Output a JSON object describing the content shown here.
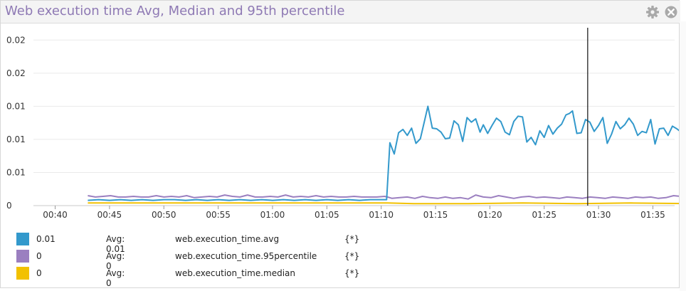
{
  "title": "Web execution time Avg, Median and 95th percentile",
  "icons": {
    "settings": "gear-icon",
    "close": "close-icon"
  },
  "colors": {
    "avg": "#3399cc",
    "p95": "#9b7fc0",
    "median": "#f2c100",
    "title": "#8e79b4"
  },
  "chart_data": {
    "type": "line",
    "x_ticks": [
      "00:40",
      "00:45",
      "00:50",
      "00:55",
      "01:00",
      "01:05",
      "01:10",
      "01:15",
      "01:20",
      "01:25",
      "01:30",
      "01:35"
    ],
    "x_range_min": [
      38,
      97
    ],
    "y_tick_labels": [
      "0",
      "0.01",
      "0.01",
      "0.01",
      "0.02",
      "0.02"
    ],
    "y_ticks_value": [
      0,
      0.005,
      0.01,
      0.015,
      0.02,
      0.025
    ],
    "ylim": [
      0,
      0.0275
    ],
    "grid": true,
    "cursor_x_min": 89,
    "series": [
      {
        "name": "web.execution_time.avg",
        "color": "#3399cc",
        "points": [
          [
            43,
            0.0008
          ],
          [
            44,
            0.0009
          ],
          [
            45,
            0.0008
          ],
          [
            46,
            0.0009
          ],
          [
            47,
            0.0008
          ],
          [
            48,
            0.0009
          ],
          [
            49,
            0.0008
          ],
          [
            50,
            0.0009
          ],
          [
            51,
            0.0009
          ],
          [
            52,
            0.0008
          ],
          [
            53,
            0.0009
          ],
          [
            54,
            0.0008
          ],
          [
            55,
            0.0009
          ],
          [
            56,
            0.0008
          ],
          [
            57,
            0.0009
          ],
          [
            58,
            0.0008
          ],
          [
            59,
            0.0009
          ],
          [
            60,
            0.0008
          ],
          [
            61,
            0.0009
          ],
          [
            62,
            0.0008
          ],
          [
            63,
            0.0009
          ],
          [
            64,
            0.0008
          ],
          [
            65,
            0.0009
          ],
          [
            66,
            0.0008
          ],
          [
            67,
            0.0009
          ],
          [
            68,
            0.0008
          ],
          [
            69,
            0.0009
          ],
          [
            70,
            0.0009
          ],
          [
            70.5,
            0.0009
          ],
          [
            70.8,
            0.0095
          ],
          [
            71.2,
            0.0078
          ],
          [
            71.6,
            0.011
          ],
          [
            72.0,
            0.0115
          ],
          [
            72.4,
            0.0106
          ],
          [
            72.8,
            0.0117
          ],
          [
            73.2,
            0.0094
          ],
          [
            73.6,
            0.0101
          ],
          [
            74.0,
            0.0129
          ],
          [
            74.3,
            0.015
          ],
          [
            74.7,
            0.0117
          ],
          [
            75.1,
            0.0116
          ],
          [
            75.5,
            0.0111
          ],
          [
            75.9,
            0.0101
          ],
          [
            76.3,
            0.0102
          ],
          [
            76.7,
            0.0128
          ],
          [
            77.1,
            0.0122
          ],
          [
            77.5,
            0.0097
          ],
          [
            77.9,
            0.0133
          ],
          [
            78.3,
            0.0126
          ],
          [
            78.7,
            0.0131
          ],
          [
            79.1,
            0.0111
          ],
          [
            79.4,
            0.0122
          ],
          [
            79.8,
            0.0109
          ],
          [
            80.2,
            0.0121
          ],
          [
            80.6,
            0.0132
          ],
          [
            81.0,
            0.0127
          ],
          [
            81.4,
            0.0111
          ],
          [
            81.8,
            0.0107
          ],
          [
            82.2,
            0.0127
          ],
          [
            82.6,
            0.0135
          ],
          [
            83.0,
            0.0134
          ],
          [
            83.4,
            0.0096
          ],
          [
            83.8,
            0.0103
          ],
          [
            84.2,
            0.0092
          ],
          [
            84.6,
            0.0113
          ],
          [
            85.0,
            0.0103
          ],
          [
            85.4,
            0.0121
          ],
          [
            85.8,
            0.0108
          ],
          [
            86.2,
            0.0117
          ],
          [
            86.6,
            0.0123
          ],
          [
            87.0,
            0.0137
          ],
          [
            87.3,
            0.0139
          ],
          [
            87.6,
            0.0143
          ],
          [
            88.0,
            0.0109
          ],
          [
            88.4,
            0.011
          ],
          [
            88.8,
            0.013
          ],
          [
            89.2,
            0.0126
          ],
          [
            89.6,
            0.0112
          ],
          [
            90.0,
            0.0121
          ],
          [
            90.4,
            0.0133
          ],
          [
            90.8,
            0.0094
          ],
          [
            91.2,
            0.0108
          ],
          [
            91.6,
            0.0127
          ],
          [
            92.0,
            0.0116
          ],
          [
            92.4,
            0.0122
          ],
          [
            92.8,
            0.0132
          ],
          [
            93.2,
            0.0123
          ],
          [
            93.6,
            0.0106
          ],
          [
            94.0,
            0.0112
          ],
          [
            94.4,
            0.011
          ],
          [
            94.8,
            0.013
          ],
          [
            95.2,
            0.0093
          ],
          [
            95.6,
            0.0116
          ],
          [
            96.0,
            0.0117
          ],
          [
            96.4,
            0.0106
          ],
          [
            96.8,
            0.012
          ],
          [
            97.2,
            0.0116
          ],
          [
            97.6,
            0.0111
          ],
          [
            98.0,
            0.0123
          ],
          [
            98.4,
            0.0115
          ]
        ]
      },
      {
        "name": "web.execution_time.95percentile",
        "color": "#9b7fc0",
        "points": [
          [
            43,
            0.0015
          ],
          [
            43.7,
            0.0013
          ],
          [
            44.4,
            0.0014
          ],
          [
            45.1,
            0.0015
          ],
          [
            45.8,
            0.0013
          ],
          [
            46.5,
            0.0013
          ],
          [
            47.2,
            0.0014
          ],
          [
            47.9,
            0.0013
          ],
          [
            48.6,
            0.0013
          ],
          [
            49.3,
            0.0015
          ],
          [
            50.0,
            0.0013
          ],
          [
            50.7,
            0.0014
          ],
          [
            51.4,
            0.0013
          ],
          [
            52.1,
            0.0015
          ],
          [
            52.8,
            0.0012
          ],
          [
            53.5,
            0.0013
          ],
          [
            54.2,
            0.0014
          ],
          [
            54.9,
            0.0013
          ],
          [
            55.6,
            0.0016
          ],
          [
            56.3,
            0.0014
          ],
          [
            57.0,
            0.0013
          ],
          [
            57.7,
            0.0016
          ],
          [
            58.4,
            0.0013
          ],
          [
            59.1,
            0.0013
          ],
          [
            59.8,
            0.0014
          ],
          [
            60.5,
            0.0013
          ],
          [
            61.2,
            0.0016
          ],
          [
            61.9,
            0.0013
          ],
          [
            62.6,
            0.0014
          ],
          [
            63.3,
            0.0013
          ],
          [
            64.0,
            0.0015
          ],
          [
            64.7,
            0.0013
          ],
          [
            65.4,
            0.0014
          ],
          [
            66.1,
            0.0013
          ],
          [
            66.8,
            0.0013
          ],
          [
            67.5,
            0.0014
          ],
          [
            68.2,
            0.0013
          ],
          [
            68.9,
            0.0013
          ],
          [
            69.6,
            0.0013
          ],
          [
            70.3,
            0.0014
          ],
          [
            70.6,
            0.0013
          ],
          [
            71.0,
            0.0011
          ],
          [
            71.7,
            0.0012
          ],
          [
            72.4,
            0.0013
          ],
          [
            73.1,
            0.0011
          ],
          [
            73.8,
            0.0014
          ],
          [
            74.5,
            0.0012
          ],
          [
            75.2,
            0.0011
          ],
          [
            75.9,
            0.0013
          ],
          [
            76.6,
            0.0011
          ],
          [
            77.3,
            0.0012
          ],
          [
            78.0,
            0.001
          ],
          [
            78.7,
            0.0016
          ],
          [
            79.4,
            0.0013
          ],
          [
            80.1,
            0.0012
          ],
          [
            80.8,
            0.0015
          ],
          [
            81.5,
            0.0013
          ],
          [
            82.2,
            0.0011
          ],
          [
            82.9,
            0.0013
          ],
          [
            83.6,
            0.0014
          ],
          [
            84.3,
            0.0012
          ],
          [
            85.0,
            0.0013
          ],
          [
            85.7,
            0.0012
          ],
          [
            86.4,
            0.0011
          ],
          [
            87.1,
            0.0013
          ],
          [
            87.8,
            0.0012
          ],
          [
            88.5,
            0.0011
          ],
          [
            89.2,
            0.0013
          ],
          [
            89.9,
            0.0012
          ],
          [
            90.6,
            0.0011
          ],
          [
            91.3,
            0.0013
          ],
          [
            92.0,
            0.0012
          ],
          [
            92.7,
            0.0011
          ],
          [
            93.4,
            0.0013
          ],
          [
            94.1,
            0.0012
          ],
          [
            94.8,
            0.0013
          ],
          [
            95.5,
            0.0011
          ],
          [
            96.2,
            0.0012
          ],
          [
            96.9,
            0.0015
          ],
          [
            97.6,
            0.0014
          ],
          [
            98.3,
            0.0013
          ]
        ]
      },
      {
        "name": "web.execution_time.median",
        "color": "#f2c100",
        "points": [
          [
            43,
            0.0004
          ],
          [
            48,
            0.0004
          ],
          [
            53,
            0.0004
          ],
          [
            58,
            0.0004
          ],
          [
            63,
            0.0004
          ],
          [
            68,
            0.0004
          ],
          [
            70.6,
            0.0004
          ],
          [
            73,
            0.0003
          ],
          [
            78,
            0.0003
          ],
          [
            83,
            0.0004
          ],
          [
            88,
            0.0003
          ],
          [
            93,
            0.0004
          ],
          [
            98.4,
            0.0003
          ]
        ]
      }
    ]
  },
  "legend": [
    {
      "value": "0.01",
      "avg": "Avg: 0.01",
      "name": "web.execution_time.avg",
      "scope": "{*}",
      "color": "#3399cc"
    },
    {
      "value": "0",
      "avg": "Avg: 0",
      "name": "web.execution_time.95percentile",
      "scope": "{*}",
      "color": "#9b7fc0"
    },
    {
      "value": "0",
      "avg": "Avg: 0",
      "name": "web.execution_time.median",
      "scope": "{*}",
      "color": "#f2c100"
    }
  ]
}
